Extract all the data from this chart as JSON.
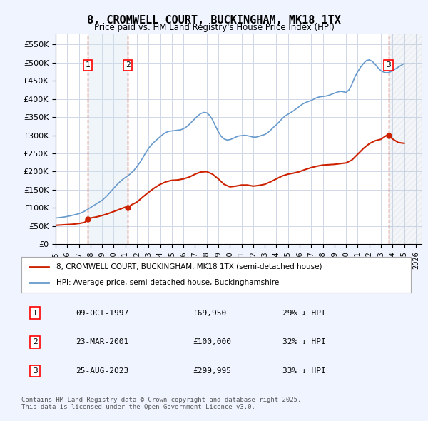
{
  "title": "8, CROMWELL COURT, BUCKINGHAM, MK18 1TX",
  "subtitle": "Price paid vs. HM Land Registry's House Price Index (HPI)",
  "ylabel_ticks": [
    "£0",
    "£50K",
    "£100K",
    "£150K",
    "£200K",
    "£250K",
    "£300K",
    "£350K",
    "£400K",
    "£450K",
    "£500K",
    "£550K"
  ],
  "ytick_values": [
    0,
    50000,
    100000,
    150000,
    200000,
    250000,
    300000,
    350000,
    400000,
    450000,
    500000,
    550000
  ],
  "ylim": [
    0,
    580000
  ],
  "xlim_start": 1995.0,
  "xlim_end": 2026.5,
  "background_color": "#f0f4ff",
  "plot_background": "#ffffff",
  "grid_color": "#d0d8e8",
  "sale_dates": [
    1997.77,
    2001.22,
    2023.65
  ],
  "sale_prices": [
    69950,
    100000,
    299995
  ],
  "sale_labels": [
    "1",
    "2",
    "3"
  ],
  "hpi_line_color": "#6699cc",
  "red_line_color": "#cc2200",
  "dashed_line_color": "#cc2200",
  "legend_entry1": "8, CROMWELL COURT, BUCKINGHAM, MK18 1TX (semi-detached house)",
  "legend_entry2": "HPI: Average price, semi-detached house, Buckinghamshire",
  "table_rows": [
    [
      "1",
      "09-OCT-1997",
      "£69,950",
      "29% ↓ HPI"
    ],
    [
      "2",
      "23-MAR-2001",
      "£100,000",
      "32% ↓ HPI"
    ],
    [
      "3",
      "25-AUG-2023",
      "£299,995",
      "33% ↓ HPI"
    ]
  ],
  "footer": "Contains HM Land Registry data © Crown copyright and database right 2025.\nThis data is licensed under the Open Government Licence v3.0.",
  "hpi_x": [
    1995.0,
    1995.25,
    1995.5,
    1995.75,
    1996.0,
    1996.25,
    1996.5,
    1996.75,
    1997.0,
    1997.25,
    1997.5,
    1997.75,
    1998.0,
    1998.25,
    1998.5,
    1998.75,
    1999.0,
    1999.25,
    1999.5,
    1999.75,
    2000.0,
    2000.25,
    2000.5,
    2000.75,
    2001.0,
    2001.25,
    2001.5,
    2001.75,
    2002.0,
    2002.25,
    2002.5,
    2002.75,
    2003.0,
    2003.25,
    2003.5,
    2003.75,
    2004.0,
    2004.25,
    2004.5,
    2004.75,
    2005.0,
    2005.25,
    2005.5,
    2005.75,
    2006.0,
    2006.25,
    2006.5,
    2006.75,
    2007.0,
    2007.25,
    2007.5,
    2007.75,
    2008.0,
    2008.25,
    2008.5,
    2008.75,
    2009.0,
    2009.25,
    2009.5,
    2009.75,
    2010.0,
    2010.25,
    2010.5,
    2010.75,
    2011.0,
    2011.25,
    2011.5,
    2011.75,
    2012.0,
    2012.25,
    2012.5,
    2012.75,
    2013.0,
    2013.25,
    2013.5,
    2013.75,
    2014.0,
    2014.25,
    2014.5,
    2014.75,
    2015.0,
    2015.25,
    2015.5,
    2015.75,
    2016.0,
    2016.25,
    2016.5,
    2016.75,
    2017.0,
    2017.25,
    2017.5,
    2017.75,
    2018.0,
    2018.25,
    2018.5,
    2018.75,
    2019.0,
    2019.25,
    2019.5,
    2019.75,
    2020.0,
    2020.25,
    2020.5,
    2020.75,
    2021.0,
    2021.25,
    2021.5,
    2021.75,
    2022.0,
    2022.25,
    2022.5,
    2022.75,
    2023.0,
    2023.25,
    2023.5,
    2023.75,
    2024.0,
    2024.25,
    2024.5,
    2024.75,
    2025.0
  ],
  "hpi_y": [
    72000,
    73000,
    74000,
    75000,
    76500,
    78000,
    80000,
    82000,
    84000,
    87000,
    91000,
    96000,
    101000,
    106000,
    111000,
    116000,
    121000,
    128000,
    136000,
    145000,
    154000,
    163000,
    171000,
    178000,
    184000,
    189000,
    196000,
    204000,
    214000,
    225000,
    238000,
    252000,
    264000,
    274000,
    282000,
    289000,
    296000,
    303000,
    308000,
    311000,
    312000,
    313000,
    314000,
    315000,
    318000,
    323000,
    330000,
    338000,
    346000,
    354000,
    360000,
    363000,
    362000,
    355000,
    343000,
    326000,
    310000,
    297000,
    290000,
    287000,
    288000,
    291000,
    295000,
    298000,
    299000,
    300000,
    299000,
    297000,
    295000,
    295000,
    297000,
    300000,
    302000,
    307000,
    314000,
    322000,
    329000,
    337000,
    346000,
    353000,
    358000,
    363000,
    368000,
    374000,
    380000,
    386000,
    390000,
    393000,
    396000,
    400000,
    404000,
    406000,
    407000,
    408000,
    410000,
    413000,
    416000,
    419000,
    421000,
    420000,
    418000,
    425000,
    440000,
    460000,
    475000,
    488000,
    498000,
    506000,
    508000,
    504000,
    496000,
    486000,
    478000,
    474000,
    472000,
    474000,
    478000,
    483000,
    488000,
    493000,
    498000
  ],
  "red_x": [
    1995.0,
    1995.5,
    1996.0,
    1996.5,
    1997.0,
    1997.5,
    1997.77,
    1998.0,
    1998.5,
    1999.0,
    1999.5,
    2000.0,
    2000.5,
    2001.0,
    2001.22,
    2001.5,
    2002.0,
    2002.5,
    2003.0,
    2003.5,
    2004.0,
    2004.5,
    2005.0,
    2005.5,
    2006.0,
    2006.5,
    2007.0,
    2007.5,
    2008.0,
    2008.5,
    2009.0,
    2009.5,
    2010.0,
    2010.5,
    2011.0,
    2011.5,
    2012.0,
    2012.5,
    2013.0,
    2013.5,
    2014.0,
    2014.5,
    2015.0,
    2015.5,
    2016.0,
    2016.5,
    2017.0,
    2017.5,
    2018.0,
    2018.5,
    2019.0,
    2019.5,
    2020.0,
    2020.5,
    2021.0,
    2021.5,
    2022.0,
    2022.5,
    2023.0,
    2023.5,
    2023.65,
    2024.0,
    2024.5,
    2025.0
  ],
  "red_y": [
    52000,
    53000,
    54000,
    55000,
    57000,
    60000,
    69950,
    72000,
    75000,
    79000,
    84000,
    90000,
    96000,
    102000,
    100000,
    108000,
    116000,
    130000,
    143000,
    155000,
    165000,
    172000,
    176000,
    177000,
    180000,
    185000,
    193000,
    199000,
    200000,
    193000,
    180000,
    165000,
    158000,
    160000,
    163000,
    163000,
    160000,
    162000,
    165000,
    172000,
    180000,
    188000,
    193000,
    196000,
    200000,
    206000,
    211000,
    215000,
    218000,
    219000,
    220000,
    222000,
    224000,
    232000,
    248000,
    264000,
    277000,
    285000,
    289000,
    300000,
    299995,
    290000,
    280000,
    278000
  ]
}
